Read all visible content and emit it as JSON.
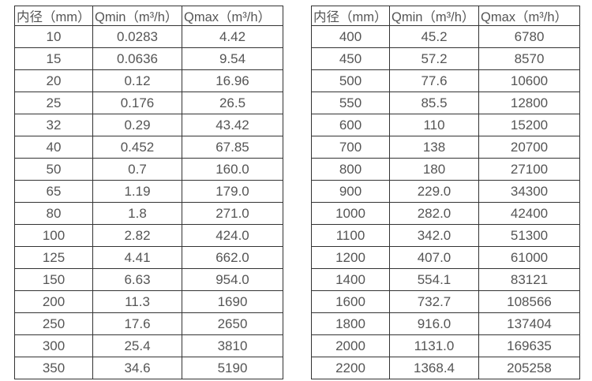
{
  "page": {
    "background_color": "#ffffff",
    "border_color": "#333333",
    "text_color": "#555555"
  },
  "tables": [
    {
      "name": "flow-table-left",
      "headers": [
        "内径（mm）",
        "Qmin（m³/h）",
        "Qmax（m³/h）"
      ],
      "rows": [
        [
          "10",
          "0.0283",
          "4.42"
        ],
        [
          "15",
          "0.0636",
          "9.54"
        ],
        [
          "20",
          "0.12",
          "16.96"
        ],
        [
          "25",
          "0.176",
          "26.5"
        ],
        [
          "32",
          "0.29",
          "43.42"
        ],
        [
          "40",
          "0.452",
          "67.85"
        ],
        [
          "50",
          "0.7",
          "160.0"
        ],
        [
          "65",
          "1.19",
          "179.0"
        ],
        [
          "80",
          "1.8",
          "271.0"
        ],
        [
          "100",
          "2.82",
          "424.0"
        ],
        [
          "125",
          "4.41",
          "662.0"
        ],
        [
          "150",
          "6.63",
          "954.0"
        ],
        [
          "200",
          "11.3",
          "1690"
        ],
        [
          "250",
          "17.6",
          "2650"
        ],
        [
          "300",
          "25.4",
          "3810"
        ],
        [
          "350",
          "34.6",
          "5190"
        ]
      ]
    },
    {
      "name": "flow-table-right",
      "headers": [
        "内径（mm）",
        "Qmin（m³/h）",
        "Qmax（m³/h）"
      ],
      "rows": [
        [
          "400",
          "45.2",
          "6780"
        ],
        [
          "450",
          "57.2",
          "8570"
        ],
        [
          "500",
          "77.6",
          "10600"
        ],
        [
          "550",
          "85.5",
          "12800"
        ],
        [
          "600",
          "110",
          "15200"
        ],
        [
          "700",
          "138",
          "20700"
        ],
        [
          "800",
          "180",
          "27100"
        ],
        [
          "900",
          "229.0",
          "34300"
        ],
        [
          "1000",
          "282.0",
          "42400"
        ],
        [
          "1100",
          "342.0",
          "51300"
        ],
        [
          "1200",
          "407.0",
          "61000"
        ],
        [
          "1400",
          "554.1",
          "83121"
        ],
        [
          "1600",
          "732.7",
          "108566"
        ],
        [
          "1800",
          "916.0",
          "137404"
        ],
        [
          "2000",
          "1131.0",
          "169635"
        ],
        [
          "2200",
          "1368.4",
          "205258"
        ]
      ]
    }
  ]
}
